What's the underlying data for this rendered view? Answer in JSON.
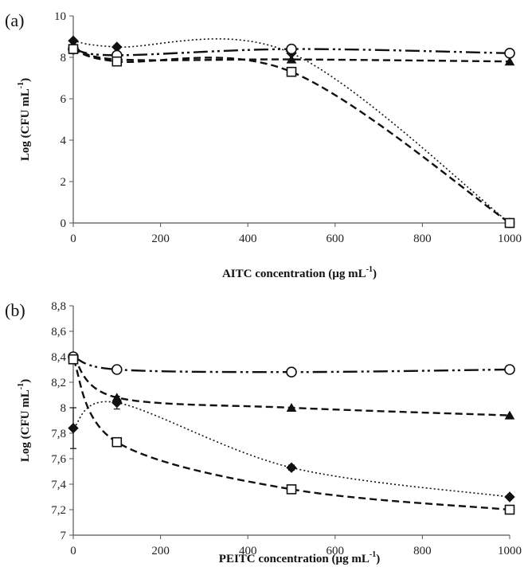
{
  "chart_data": [
    {
      "panel_label": "(a)",
      "type": "line",
      "xlabel": "AITC concentration",
      "xunit": "(µg mL",
      "xunit_exp": "-1",
      "xunit_close": ")",
      "ylabel": "Log (CFU mL",
      "ylabel_exp": "-1",
      "ylabel_close": ")",
      "xlim": [
        0,
        1000
      ],
      "ylim": [
        0,
        10
      ],
      "xticks": [
        0,
        200,
        400,
        600,
        800,
        1000
      ],
      "yticks": [
        0,
        2,
        4,
        6,
        8,
        10
      ],
      "ytick_labels": [
        "0",
        "2",
        "4",
        "6",
        "8",
        "10"
      ],
      "grid": false,
      "x": [
        0,
        100,
        500,
        1000
      ],
      "series": [
        {
          "marker": "diamond",
          "line": "dotted",
          "values": [
            8.8,
            8.5,
            8.2,
            0.0
          ]
        },
        {
          "marker": "triangle",
          "line": "dashed",
          "values": [
            8.5,
            7.9,
            7.9,
            7.8
          ]
        },
        {
          "marker": "circle-open",
          "line": "dash-dot-dot",
          "values": [
            8.4,
            8.1,
            8.4,
            8.2
          ]
        },
        {
          "marker": "square-open",
          "line": "dashed",
          "values": [
            8.4,
            7.8,
            7.3,
            0.0
          ]
        }
      ]
    },
    {
      "panel_label": "(b)",
      "type": "line",
      "xlabel": "PEITC concentration",
      "xunit": "(µg mL",
      "xunit_exp": "-1",
      "xunit_close": ")",
      "ylabel": "Log (CFU mL",
      "ylabel_exp": "-1",
      "ylabel_close": ")",
      "xlim": [
        0,
        1000
      ],
      "ylim": [
        7,
        8.8
      ],
      "xticks": [
        0,
        200,
        400,
        600,
        800,
        1000
      ],
      "yticks": [
        7,
        7.2,
        7.4,
        7.6,
        7.8,
        8,
        8.2,
        8.4,
        8.6,
        8.8
      ],
      "ytick_labels": [
        "7",
        "7,2",
        "7,4",
        "7,6",
        "7,8",
        "8",
        "8,2",
        "8,4",
        "8,6",
        "8,8"
      ],
      "grid": false,
      "x": [
        0,
        100,
        500,
        1000
      ],
      "series": [
        {
          "marker": "diamond",
          "line": "dotted",
          "values": [
            7.84,
            8.04,
            7.53,
            7.3
          ],
          "error": [
            0.16,
            0.05,
            0.02,
            0.01
          ]
        },
        {
          "marker": "triangle",
          "line": "dashed",
          "values": [
            8.4,
            8.08,
            8.0,
            7.94
          ]
        },
        {
          "marker": "circle-open",
          "line": "dash-dot-dot",
          "values": [
            8.4,
            8.3,
            8.28,
            8.3
          ]
        },
        {
          "marker": "square-open",
          "line": "dashed",
          "values": [
            8.38,
            7.73,
            7.36,
            7.2
          ]
        }
      ]
    }
  ]
}
